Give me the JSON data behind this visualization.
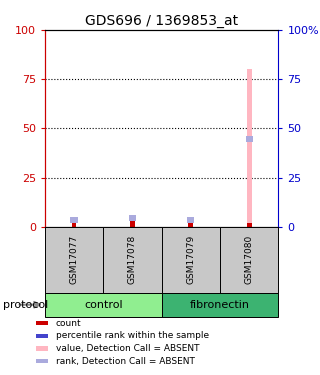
{
  "title": "GDS696 / 1369853_at",
  "samples": [
    "GSM17077",
    "GSM17078",
    "GSM17079",
    "GSM17080"
  ],
  "groups": [
    {
      "label": "control",
      "color": "#90EE90"
    },
    {
      "label": "fibronectin",
      "color": "#3CB371"
    }
  ],
  "red_values": [
    2,
    3,
    2,
    2
  ],
  "blue_values": [
    5,
    6,
    5,
    46
  ],
  "pink_values": [
    0,
    0,
    0,
    80
  ],
  "left_yticks": [
    0,
    25,
    50,
    75,
    100
  ],
  "right_yticks": [
    0,
    25,
    50,
    75,
    100
  ],
  "left_ycolor": "#CC0000",
  "right_ycolor": "#0000CC",
  "pink_bar_color": "#FFB6C1",
  "light_blue_bar_color": "#AAAADD",
  "red_bar_color": "#CC0000",
  "blue_dot_color": "#4444CC",
  "legend_items": [
    {
      "label": "count",
      "color": "#CC0000"
    },
    {
      "label": "percentile rank within the sample",
      "color": "#4444CC"
    },
    {
      "label": "value, Detection Call = ABSENT",
      "color": "#FFB6C1"
    },
    {
      "label": "rank, Detection Call = ABSENT",
      "color": "#AAAADD"
    }
  ],
  "protocol_label": "protocol",
  "sample_box_color": "#C8C8C8",
  "ylim": [
    0,
    100
  ],
  "figsize": [
    3.2,
    3.75
  ],
  "dpi": 100
}
